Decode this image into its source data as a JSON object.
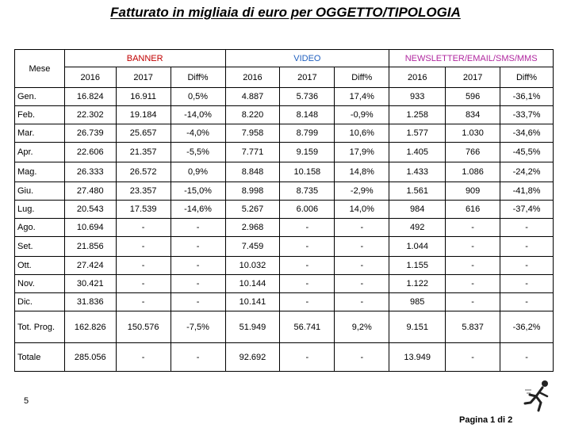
{
  "title": "Fatturato in migliaia di euro per OGGETTO/TIPOLOGIA",
  "row_header_label": "Mese",
  "groups": [
    "BANNER",
    "VIDEO",
    "NEWSLETTER/EMAIL/SMS/MMS"
  ],
  "subheaders": [
    "2016",
    "2017",
    "Diff%",
    "2016",
    "2017",
    "Diff%",
    "2016",
    "2017",
    "Diff%"
  ],
  "rows": [
    {
      "label": "Gen.",
      "cells": [
        "16.824",
        "16.911",
        "0,5%",
        "4.887",
        "5.736",
        "17,4%",
        "933",
        "596",
        "-36,1%"
      ]
    },
    {
      "label": "Feb.",
      "cells": [
        "22.302",
        "19.184",
        "-14,0%",
        "8.220",
        "8.148",
        "-0,9%",
        "1.258",
        "834",
        "-33,7%"
      ]
    },
    {
      "label": "Mar.",
      "cells": [
        "26.739",
        "25.657",
        "-4,0%",
        "7.958",
        "8.799",
        "10,6%",
        "1.577",
        "1.030",
        "-34,6%"
      ]
    },
    {
      "label": "Apr.",
      "cells": [
        "22.606",
        "21.357",
        "-5,5%",
        "7.771",
        "9.159",
        "17,9%",
        "1.405",
        "766",
        "-45,5%"
      ]
    },
    {
      "label": "Mag.",
      "cells": [
        "26.333",
        "26.572",
        "0,9%",
        "8.848",
        "10.158",
        "14,8%",
        "1.433",
        "1.086",
        "-24,2%"
      ]
    },
    {
      "label": "Giu.",
      "cells": [
        "27.480",
        "23.357",
        "-15,0%",
        "8.998",
        "8.735",
        "-2,9%",
        "1.561",
        "909",
        "-41,8%"
      ]
    },
    {
      "label": "Lug.",
      "cells": [
        "20.543",
        "17.539",
        "-14,6%",
        "5.267",
        "6.006",
        "14,0%",
        "984",
        "616",
        "-37,4%"
      ]
    },
    {
      "label": "Ago.",
      "cells": [
        "10.694",
        "-",
        "-",
        "2.968",
        "-",
        "-",
        "492",
        "-",
        "-"
      ]
    },
    {
      "label": "Set.",
      "cells": [
        "21.856",
        "-",
        "-",
        "7.459",
        "-",
        "-",
        "1.044",
        "-",
        "-"
      ]
    },
    {
      "label": "Ott.",
      "cells": [
        "27.424",
        "-",
        "-",
        "10.032",
        "-",
        "-",
        "1.155",
        "-",
        "-"
      ]
    },
    {
      "label": "Nov.",
      "cells": [
        "30.421",
        "-",
        "-",
        "10.144",
        "-",
        "-",
        "1.122",
        "-",
        "-"
      ]
    },
    {
      "label": "Dic.",
      "cells": [
        "31.836",
        "-",
        "-",
        "10.141",
        "-",
        "-",
        "985",
        "-",
        "-"
      ]
    },
    {
      "label": "Tot. Prog.",
      "cells": [
        "162.826",
        "150.576",
        "-7,5%",
        "51.949",
        "56.741",
        "9,2%",
        "9.151",
        "5.837",
        "-36,2%"
      ]
    },
    {
      "label": "Totale",
      "cells": [
        "285.056",
        "-",
        "-",
        "92.692",
        "-",
        "-",
        "13.949",
        "-",
        "-"
      ]
    }
  ],
  "page_number": "5",
  "footer": "Pagina 1 di 2",
  "logo_icon": "running-figure-icon"
}
